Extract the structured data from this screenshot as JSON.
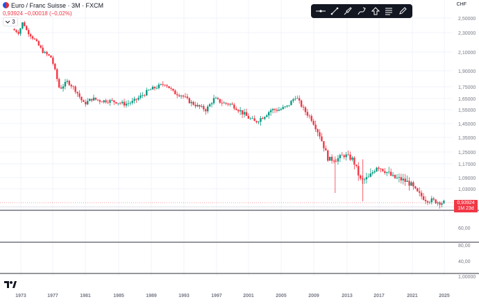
{
  "header": {
    "symbol_title": "Euro / Franc Suisse · 3M · FXCM",
    "last_change": "0,93924  −0,00018 (−0,02%)",
    "collapse_count": "3",
    "currency": "CHF"
  },
  "toolbar": {
    "tools": [
      "horizontal-line-icon",
      "trend-line-icon",
      "brush-icon",
      "pen-icon",
      "arrow-up-icon",
      "text-notes-icon",
      "pencil-icon"
    ]
  },
  "price_label": {
    "value": "0,93924",
    "countdown": "1M 23d"
  },
  "colors": {
    "up": "#089981",
    "down": "#f23645",
    "grid": "#f0f3fa",
    "axis_text": "#787b86"
  },
  "chart_data": [
    {
      "type": "candlestick",
      "title": "",
      "x_ticks": [
        "1973",
        "1977",
        "1981",
        "1985",
        "1989",
        "1993",
        "1997",
        "2001",
        "2005",
        "2009",
        "2013",
        "2017",
        "2021",
        "2025"
      ],
      "y_ticks": [
        "2,50000",
        "2,30000",
        "2,10000",
        "1,90000",
        "1,75000",
        "1,65000",
        "1,55000",
        "1,45000",
        "1,35000",
        "1,25000",
        "1,17000",
        "1,09000",
        "1,03000",
        "0,93924"
      ],
      "close_path": [
        [
          1972,
          2.36
        ],
        [
          1973,
          2.3
        ],
        [
          1973.5,
          2.45
        ],
        [
          1974,
          2.32
        ],
        [
          1975,
          2.22
        ],
        [
          1976,
          2.1
        ],
        [
          1977,
          2.04
        ],
        [
          1978,
          1.73
        ],
        [
          1979,
          1.8
        ],
        [
          1980,
          1.72
        ],
        [
          1981,
          1.6
        ],
        [
          1982,
          1.65
        ],
        [
          1983,
          1.63
        ],
        [
          1984,
          1.63
        ],
        [
          1985,
          1.62
        ],
        [
          1986,
          1.6
        ],
        [
          1987,
          1.62
        ],
        [
          1988,
          1.67
        ],
        [
          1989,
          1.72
        ],
        [
          1990,
          1.75
        ],
        [
          1991,
          1.78
        ],
        [
          1992,
          1.7
        ],
        [
          1993,
          1.68
        ],
        [
          1994,
          1.62
        ],
        [
          1995,
          1.58
        ],
        [
          1996,
          1.55
        ],
        [
          1997,
          1.65
        ],
        [
          1998,
          1.61
        ],
        [
          1999,
          1.6
        ],
        [
          2000,
          1.55
        ],
        [
          2001,
          1.5
        ],
        [
          2002,
          1.46
        ],
        [
          2003,
          1.5
        ],
        [
          2004,
          1.55
        ],
        [
          2005,
          1.55
        ],
        [
          2006,
          1.58
        ],
        [
          2007,
          1.67
        ],
        [
          2008,
          1.55
        ],
        [
          2009,
          1.48
        ],
        [
          2010,
          1.36
        ],
        [
          2011,
          1.2
        ],
        [
          2012,
          1.2
        ],
        [
          2013,
          1.23
        ],
        [
          2014,
          1.2
        ],
        [
          2015,
          1.07
        ],
        [
          2016,
          1.09
        ],
        [
          2017,
          1.16
        ],
        [
          2018,
          1.13
        ],
        [
          2019,
          1.09
        ],
        [
          2020,
          1.08
        ],
        [
          2021,
          1.06
        ],
        [
          2022,
          1.0
        ],
        [
          2023,
          0.96
        ],
        [
          2024,
          0.95
        ],
        [
          2025,
          0.939
        ]
      ]
    },
    {
      "type": "line",
      "title": "",
      "y_ticks": [
        "80,00",
        "60,00",
        "40,00",
        "1,00000"
      ],
      "values": []
    }
  ]
}
